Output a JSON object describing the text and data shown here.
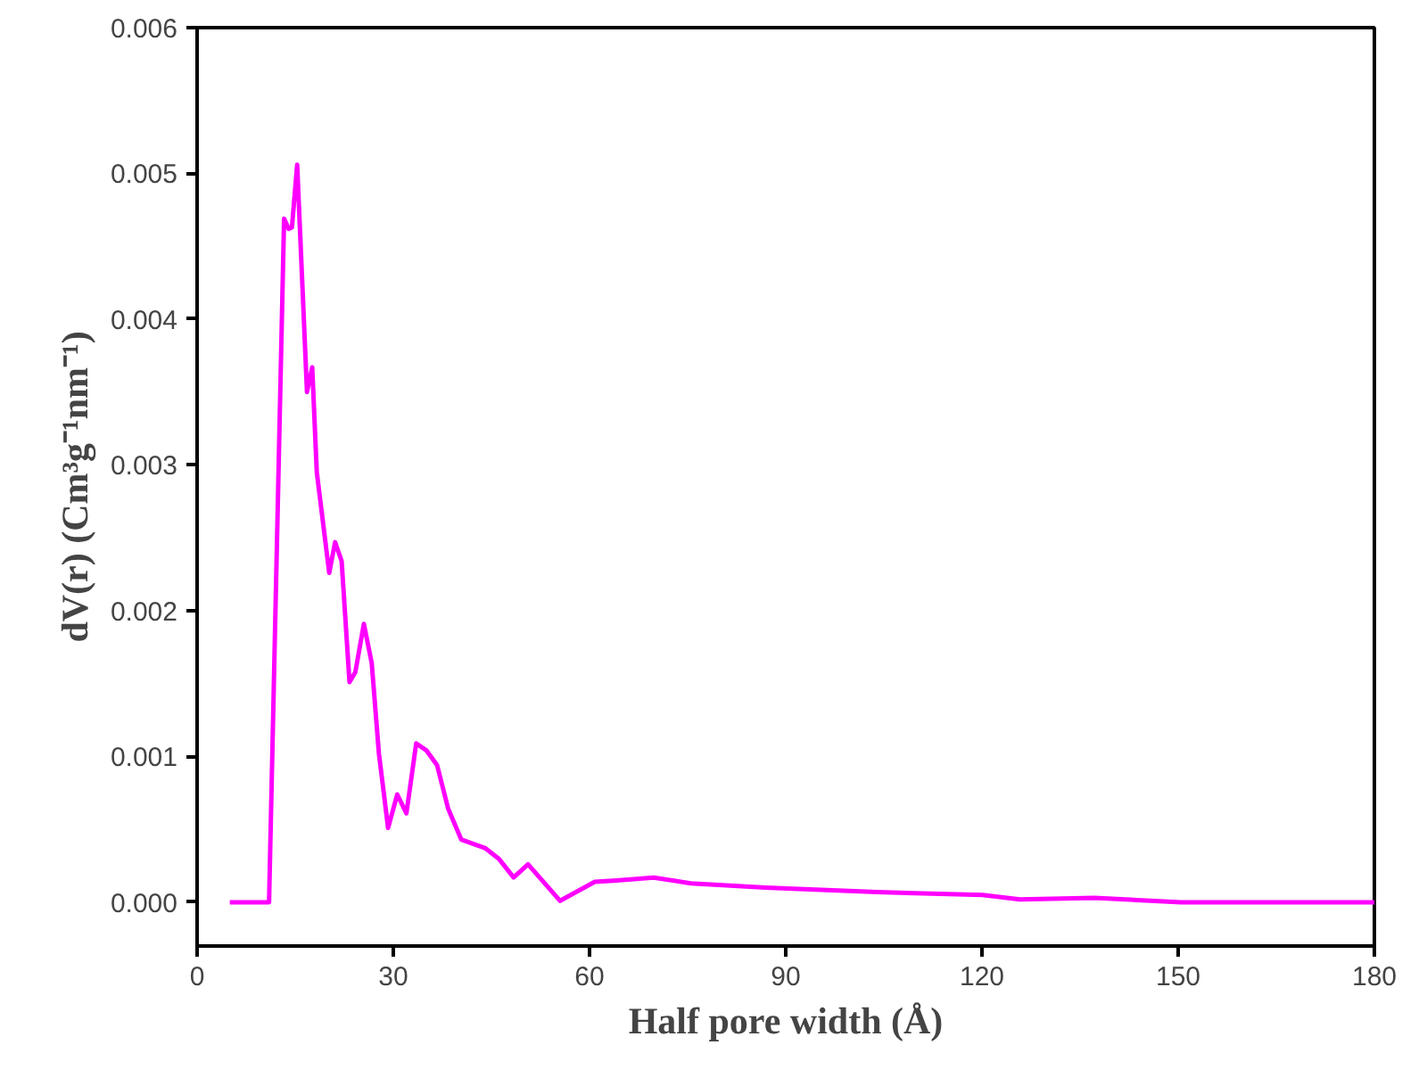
{
  "chart_data": {
    "type": "line",
    "xlabel": "Half pore width (Å)",
    "ylabel": "dV(r) (Cm³g⁻¹nm⁻¹)",
    "x": [
      5,
      11,
      13.3,
      14.0,
      14.5,
      15.3,
      16.8,
      17.6,
      18.3,
      20.2,
      21.1,
      22.1,
      23.3,
      24.2,
      25.5,
      26.7,
      27.8,
      29.2,
      30.6,
      32.0,
      33.5,
      35.1,
      36.7,
      38.4,
      40.4,
      44.1,
      46.1,
      48.4,
      50.6,
      55.5,
      60.8,
      64.1,
      69.8,
      75.5,
      86.9,
      104,
      120.1,
      125.8,
      137.2,
      150.5,
      180
    ],
    "series": [
      {
        "color": "#ff00ff",
        "values": [
          0,
          0,
          0.00469,
          0.00462,
          0.00463,
          0.00506,
          0.0035,
          0.00367,
          0.00295,
          0.00226,
          0.00247,
          0.00234,
          0.00151,
          0.00158,
          0.00191,
          0.00164,
          0.00102,
          0.00051,
          0.00074,
          0.00061,
          0.00109,
          0.00104,
          0.00094,
          0.00064,
          0.00043,
          0.00037,
          0.0003,
          0.00017,
          0.00026,
          1e-05,
          0.00014,
          0.00015,
          0.00017,
          0.00013,
          0.0001,
          7e-05,
          5e-05,
          2e-05,
          3e-05,
          0,
          0
        ]
      }
    ],
    "xlim": [
      0,
      180
    ],
    "xticks": [
      0,
      30,
      60,
      90,
      120,
      150,
      180
    ],
    "ylim": [
      -0.0003,
      0.006
    ],
    "yticks": [
      {
        "value": 0,
        "label": "0.000"
      },
      0.001,
      0.002,
      0.003,
      0.004,
      0.005,
      0.006
    ],
    "grid": false,
    "marker": "none",
    "line_style": "solid"
  }
}
